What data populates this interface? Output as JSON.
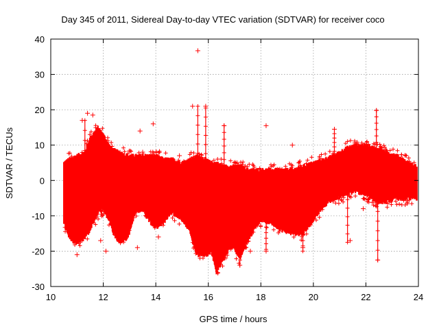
{
  "chart_data": {
    "type": "scatter",
    "title": "Day 345 of 2011, Sidereal Day-to-day VTEC variation (SDTVAR) for receiver coco",
    "xlabel": "GPS time / hours",
    "ylabel": "SDTVAR / TECUs",
    "xlim": [
      10,
      24
    ],
    "ylim": [
      -30,
      40
    ],
    "x_ticks": [
      10,
      12,
      14,
      16,
      18,
      20,
      22,
      24
    ],
    "y_ticks": [
      -30,
      -20,
      -10,
      0,
      10,
      20,
      30,
      40
    ],
    "x_tick_labels": [
      "10",
      "12",
      "14",
      "16",
      "18",
      "20",
      "22",
      "24"
    ],
    "y_tick_labels": [
      "-30",
      "-20",
      "-10",
      "0",
      "10",
      "20",
      "30",
      "40"
    ],
    "grid": true,
    "series_color": "#ff0000",
    "marker": "plus",
    "envelope": {
      "description": "dense band of overlapping per-satellite traces",
      "x": [
        10.5,
        10.7,
        11.0,
        11.3,
        11.5,
        11.8,
        12.0,
        12.3,
        12.6,
        12.9,
        13.2,
        13.5,
        13.8,
        14.0,
        14.3,
        14.6,
        15.0,
        15.3,
        15.6,
        15.9,
        16.1,
        16.3,
        16.6,
        16.9,
        17.2,
        17.5,
        17.8,
        18.0,
        18.4,
        18.8,
        19.2,
        19.6,
        20.0,
        20.4,
        20.8,
        21.2,
        21.6,
        22.0,
        22.4,
        22.8,
        23.2,
        23.6,
        23.95
      ],
      "upper": [
        5,
        6,
        7,
        8,
        12,
        15,
        13,
        9,
        8,
        7,
        7,
        7,
        7,
        7,
        6,
        6,
        5,
        6,
        7,
        6,
        5,
        5,
        4,
        4,
        4,
        3,
        3,
        3,
        3,
        3,
        3,
        4,
        5,
        6,
        7,
        9,
        10,
        10,
        9,
        8,
        7,
        5,
        4
      ],
      "lower": [
        -12,
        -16,
        -18,
        -16,
        -14,
        -9,
        -8,
        -12,
        -17,
        -15,
        -9,
        -8,
        -10,
        -13,
        -11,
        -9,
        -11,
        -14,
        -21,
        -20,
        -19,
        -26,
        -22,
        -18,
        -22,
        -17,
        -13,
        -11,
        -12,
        -14,
        -15,
        -15,
        -11,
        -7,
        -5,
        -4,
        -3,
        -4,
        -6,
        -6,
        -5,
        -5,
        -5
      ]
    },
    "outliers": [
      {
        "x": 10.6,
        "y": -11
      },
      {
        "x": 11.0,
        "y": -21
      },
      {
        "x": 11.2,
        "y": 17
      },
      {
        "x": 11.4,
        "y": 19
      },
      {
        "x": 11.6,
        "y": 18.5
      },
      {
        "x": 11.9,
        "y": -17
      },
      {
        "x": 12.1,
        "y": -20
      },
      {
        "x": 13.3,
        "y": -19
      },
      {
        "x": 13.4,
        "y": 14
      },
      {
        "x": 13.9,
        "y": 16
      },
      {
        "x": 14.1,
        "y": -16
      },
      {
        "x": 15.4,
        "y": 21
      },
      {
        "x": 15.6,
        "y": 36.7
      },
      {
        "x": 15.9,
        "y": 21
      },
      {
        "x": 16.6,
        "y": 15.5
      },
      {
        "x": 17.2,
        "y": -24
      },
      {
        "x": 17.6,
        "y": -20
      },
      {
        "x": 18.2,
        "y": 15.5
      },
      {
        "x": 18.2,
        "y": -20
      },
      {
        "x": 19.2,
        "y": 10
      },
      {
        "x": 19.6,
        "y": -19
      },
      {
        "x": 20.8,
        "y": 14.5
      },
      {
        "x": 21.4,
        "y": -17
      },
      {
        "x": 21.9,
        "y": -8
      },
      {
        "x": 22.4,
        "y": 19.8
      },
      {
        "x": 22.45,
        "y": -22.5
      },
      {
        "x": 20.0,
        "y": -8
      },
      {
        "x": 12.6,
        "y": -14
      },
      {
        "x": 13.5,
        "y": 8
      },
      {
        "x": 14.9,
        "y": 7
      },
      {
        "x": 16.2,
        "y": -12
      }
    ],
    "spikes": [
      {
        "x": 11.3,
        "y0": 0,
        "y1": 17
      },
      {
        "x": 15.6,
        "y0": 5,
        "y1": 21
      },
      {
        "x": 15.9,
        "y0": 5,
        "y1": 20.5
      },
      {
        "x": 16.6,
        "y0": 4,
        "y1": 15.5
      },
      {
        "x": 20.8,
        "y0": 7,
        "y1": 14.5
      },
      {
        "x": 22.4,
        "y0": 9,
        "y1": 19.8
      },
      {
        "x": 21.3,
        "y0": -3,
        "y1": -17.5
      },
      {
        "x": 22.45,
        "y0": -6,
        "y1": -22.5
      },
      {
        "x": 17.2,
        "y0": -10,
        "y1": -24
      },
      {
        "x": 19.6,
        "y0": -11,
        "y1": -20
      },
      {
        "x": 18.2,
        "y0": -10,
        "y1": -19.5
      }
    ],
    "troughs": [
      {
        "center": 12.7,
        "depth": -17,
        "width": 0.5
      },
      {
        "center": 14.0,
        "depth": -13,
        "width": 0.5
      },
      {
        "center": 15.9,
        "depth": -21,
        "width": 0.6
      },
      {
        "center": 17.0,
        "depth": -19,
        "width": 0.4
      },
      {
        "center": 21.6,
        "depth": -3,
        "width": 0.5
      }
    ]
  }
}
